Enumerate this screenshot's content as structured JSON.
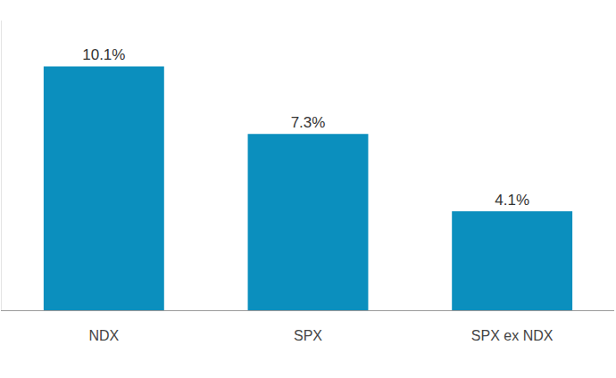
{
  "chart_data": {
    "type": "bar",
    "categories": [
      "NDX",
      "SPX",
      "SPX ex NDX"
    ],
    "values": [
      10.1,
      7.3,
      4.1
    ],
    "value_labels": [
      "10.1%",
      "7.3%",
      "4.1%"
    ],
    "color": "#0b8fbe",
    "ylim": [
      0,
      12
    ],
    "yticks": [],
    "grid": false,
    "data_labels": true,
    "tick_labels": "x"
  }
}
